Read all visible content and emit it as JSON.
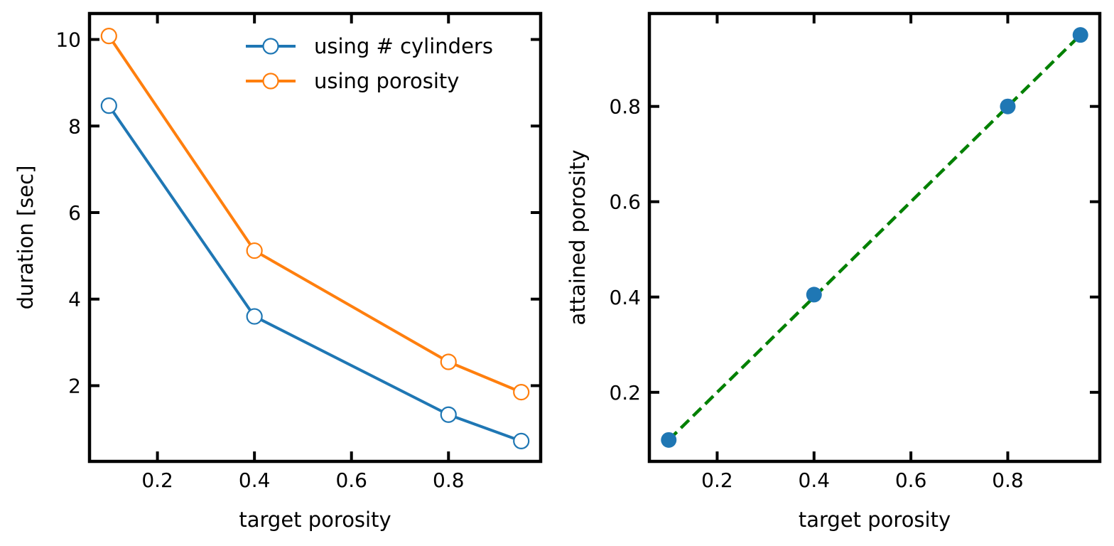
{
  "chart_data": [
    {
      "type": "line",
      "xlabel": "target porosity",
      "ylabel": "duration [sec]",
      "xlim": [
        0.06,
        0.99
      ],
      "ylim": [
        0.25,
        10.6
      ],
      "xticks": [
        0.2,
        0.4,
        0.6,
        0.8
      ],
      "xtick_labels": [
        "0.2",
        "0.4",
        "0.6",
        "0.8"
      ],
      "yticks": [
        2,
        4,
        6,
        8,
        10
      ],
      "ytick_labels": [
        "2",
        "4",
        "6",
        "8",
        "10"
      ],
      "grid": false,
      "legend": "top-right",
      "x": [
        0.1,
        0.4,
        0.8,
        0.95
      ],
      "series": [
        {
          "name": "using # cylinders",
          "color": "#1f77b4",
          "marker": "open-circle",
          "values": [
            8.47,
            3.6,
            1.33,
            0.72
          ]
        },
        {
          "name": "using porosity",
          "color": "#ff7f0e",
          "marker": "open-circle",
          "values": [
            10.08,
            5.12,
            2.55,
            1.85
          ]
        }
      ]
    },
    {
      "type": "scatter",
      "xlabel": "target porosity",
      "ylabel": "attained porosity",
      "xlim": [
        0.06,
        0.99
      ],
      "ylim": [
        0.055,
        0.995
      ],
      "xticks": [
        0.2,
        0.4,
        0.6,
        0.8
      ],
      "xtick_labels": [
        "0.2",
        "0.4",
        "0.6",
        "0.8"
      ],
      "yticks": [
        0.2,
        0.4,
        0.6,
        0.8
      ],
      "ytick_labels": [
        "0.2",
        "0.4",
        "0.6",
        "0.8"
      ],
      "grid": false,
      "x": [
        0.1,
        0.4,
        0.8,
        0.95
      ],
      "values": [
        0.1,
        0.405,
        0.8,
        0.95
      ],
      "point_color": "#1f77b4",
      "reference_line": {
        "style": "dashed",
        "color": "#008000",
        "x": [
          0.1,
          0.95
        ],
        "y": [
          0.1,
          0.95
        ]
      }
    }
  ]
}
